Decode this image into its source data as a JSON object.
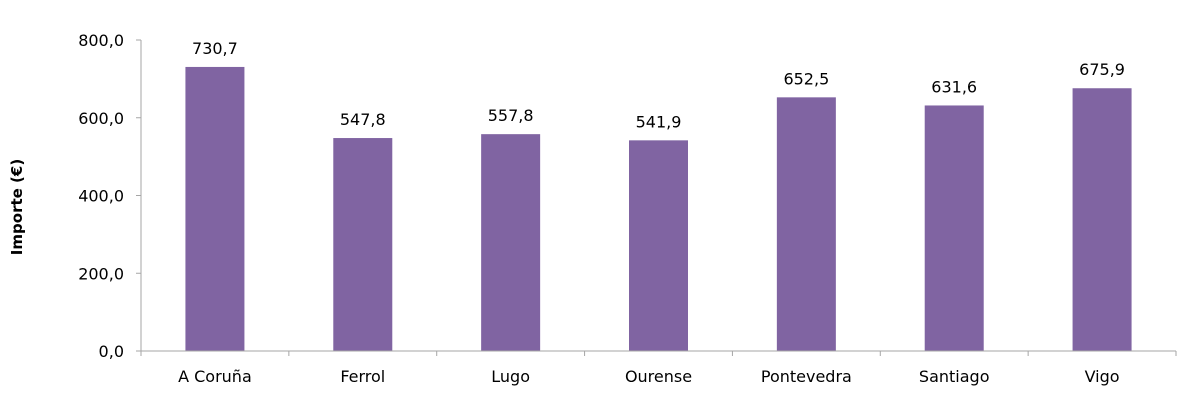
{
  "chart_data": {
    "type": "bar",
    "categories": [
      "A Coruña",
      "Ferrol",
      "Lugo",
      "Ourense",
      "Pontevedra",
      "Santiago",
      "Vigo"
    ],
    "values": [
      730.7,
      547.8,
      557.8,
      541.9,
      652.5,
      631.6,
      675.9
    ],
    "data_labels": [
      "730,7",
      "547,8",
      "557,8",
      "541,9",
      "652,5",
      "631,6",
      "675,9"
    ],
    "title": "",
    "xlabel": "",
    "ylabel": "Importe (€)",
    "ylim": [
      0,
      800
    ],
    "yticks": [
      "0,0",
      "200,0",
      "400,0",
      "600,0",
      "800,0"
    ],
    "grid": false,
    "bar_color": "#8064a2",
    "axis_color": "#a6a6a6"
  }
}
